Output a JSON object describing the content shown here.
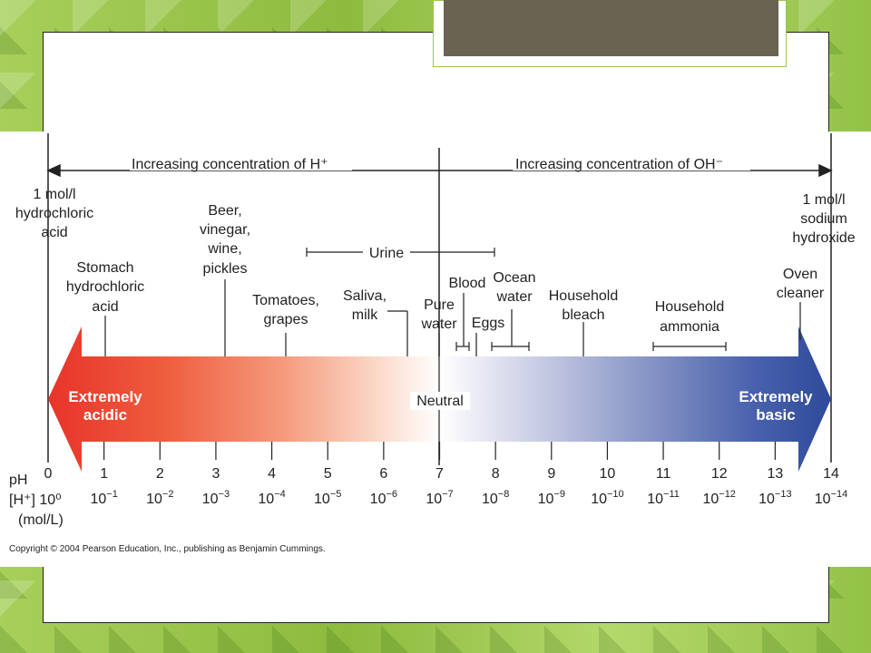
{
  "colors": {
    "acid": "#e8342a",
    "neutral": "#ffffff",
    "base": "#2e4a9a",
    "background": "#9cc64e",
    "title_bar": "#6b6352"
  },
  "diagram": {
    "top_left_arrow_label": "Increasing concentration of H⁺",
    "top_right_arrow_label": "Increasing concentration of OH⁻",
    "band_left_label": [
      "Extremely",
      "acidic"
    ],
    "band_center_label": "Neutral",
    "band_right_label": [
      "Extremely",
      "basic"
    ],
    "row_labels": {
      "ph": "pH",
      "h_conc": "[H⁺] 10⁰",
      "unit": "(mol/L)"
    },
    "ph_values": [
      "0",
      "1",
      "2",
      "3",
      "4",
      "5",
      "6",
      "7",
      "8",
      "9",
      "10",
      "11",
      "12",
      "13",
      "14"
    ],
    "conc_exponents": [
      "",
      "-1",
      "-2",
      "-3",
      "-4",
      "-5",
      "-6",
      "-7",
      "-8",
      "-9",
      "-10",
      "-11",
      "-12",
      "-13",
      "-14"
    ],
    "conc_base": "10",
    "substances": {
      "hcl": [
        "1 mol/l",
        "hydrochloric",
        "acid"
      ],
      "naoh": [
        "1 mol/l",
        "sodium",
        "hydroxide"
      ],
      "stomach": [
        "Stomach",
        "hydrochloric",
        "acid"
      ],
      "beer": [
        "Beer,",
        "vinegar,",
        "wine,",
        "pickles"
      ],
      "tomatoes": [
        "Tomatoes,",
        "grapes"
      ],
      "saliva": [
        "Saliva,",
        "milk"
      ],
      "urine": "Urine",
      "pure_water": [
        "Pure",
        "water"
      ],
      "blood": "Blood",
      "eggs": "Eggs",
      "ocean": [
        "Ocean",
        "water"
      ],
      "bleach": [
        "Household",
        "bleach"
      ],
      "ammonia": [
        "Household",
        "ammonia"
      ],
      "oven": [
        "Oven",
        "cleaner"
      ]
    },
    "copyright": "Copyright © 2004 Pearson Education, Inc., publishing as Benjamin Cummings."
  }
}
